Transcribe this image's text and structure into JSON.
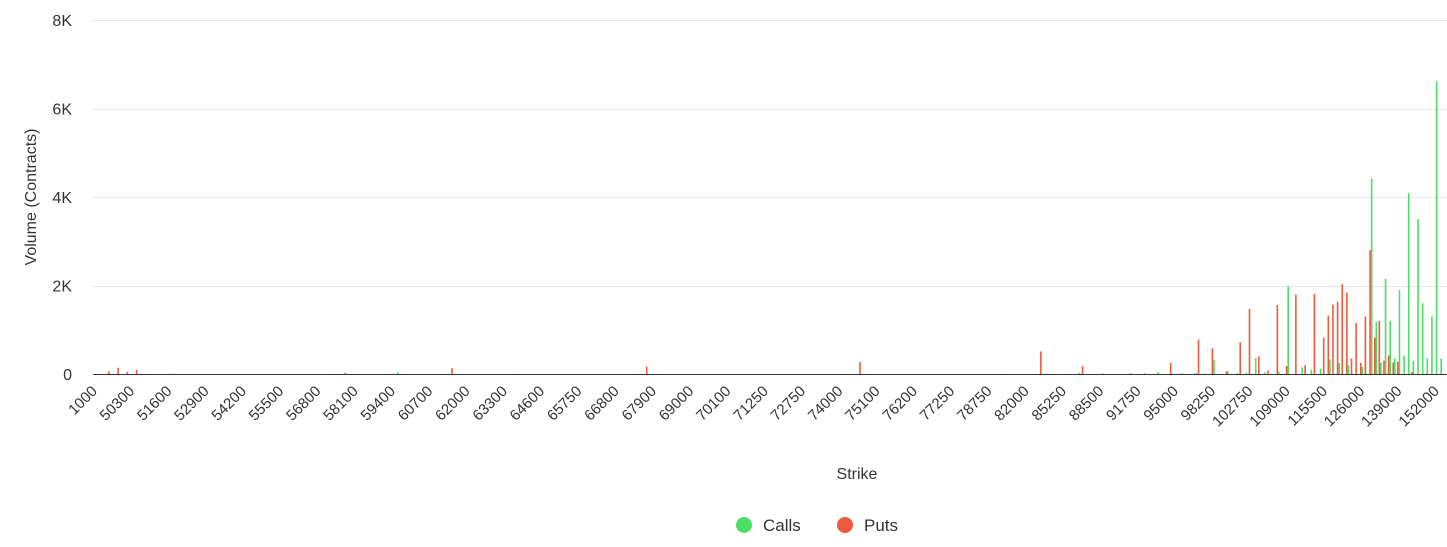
{
  "colors": {
    "calls": "#4cde67",
    "puts": "#f05a3c",
    "grid": "#e6e6e6",
    "axis": "#333333",
    "text": "#333333"
  },
  "chart_data": {
    "type": "bar",
    "xlabel": "Strike",
    "ylabel": "Volume (Contracts)",
    "ylim": [
      0,
      8000
    ],
    "y_ticks": [
      "0",
      "2K",
      "4K",
      "6K",
      "8K"
    ],
    "y_tick_values": [
      0,
      2000,
      4000,
      6000,
      8000
    ],
    "x_tick_labels": [
      "1000",
      "50300",
      "51600",
      "52900",
      "54200",
      "55500",
      "56800",
      "58100",
      "59400",
      "60700",
      "62000",
      "63300",
      "64600",
      "65750",
      "66800",
      "67900",
      "69000",
      "70100",
      "71250",
      "72750",
      "74000",
      "75100",
      "76200",
      "77250",
      "78750",
      "82000",
      "85250",
      "88500",
      "91750",
      "95000",
      "98250",
      "102750",
      "109000",
      "115500",
      "126000",
      "139000",
      "152000"
    ],
    "grid": true,
    "legend_position": "bottom-center",
    "num_strikes": 290,
    "series": [
      {
        "name": "Calls",
        "color": "#4cde67",
        "points": [
          {
            "x": 15,
            "y": 10
          },
          {
            "x": 30,
            "y": 5
          },
          {
            "x": 64,
            "y": 40
          },
          {
            "x": 90,
            "y": 5
          },
          {
            "x": 156,
            "y": 5
          },
          {
            "x": 183,
            "y": 5
          },
          {
            "x": 194,
            "y": 5
          },
          {
            "x": 211,
            "y": 30
          },
          {
            "x": 216,
            "y": 15
          },
          {
            "x": 222,
            "y": 20
          },
          {
            "x": 225,
            "y": 20
          },
          {
            "x": 228,
            "y": 40
          },
          {
            "x": 231,
            "y": 10
          },
          {
            "x": 233,
            "y": 20
          },
          {
            "x": 236,
            "y": 25
          },
          {
            "x": 238,
            "y": 15
          },
          {
            "x": 240,
            "y": 320
          },
          {
            "x": 243,
            "y": 60
          },
          {
            "x": 245,
            "y": 20
          },
          {
            "x": 247,
            "y": 30
          },
          {
            "x": 249,
            "y": 360
          },
          {
            "x": 251,
            "y": 40
          },
          {
            "x": 254,
            "y": 50
          },
          {
            "x": 256,
            "y": 1980
          },
          {
            "x": 259,
            "y": 150
          },
          {
            "x": 261,
            "y": 100
          },
          {
            "x": 263,
            "y": 120
          },
          {
            "x": 265,
            "y": 330
          },
          {
            "x": 267,
            "y": 250
          },
          {
            "x": 269,
            "y": 200
          },
          {
            "x": 272,
            "y": 160
          },
          {
            "x": 274,
            "y": 4420
          },
          {
            "x": 275,
            "y": 1180
          },
          {
            "x": 276,
            "y": 260
          },
          {
            "x": 277,
            "y": 2150
          },
          {
            "x": 278,
            "y": 1200
          },
          {
            "x": 279,
            "y": 350
          },
          {
            "x": 280,
            "y": 1900
          },
          {
            "x": 281,
            "y": 420
          },
          {
            "x": 282,
            "y": 4090
          },
          {
            "x": 283,
            "y": 300
          },
          {
            "x": 284,
            "y": 3500
          },
          {
            "x": 285,
            "y": 1600
          },
          {
            "x": 286,
            "y": 350
          },
          {
            "x": 287,
            "y": 1300
          },
          {
            "x": 288,
            "y": 6620
          },
          {
            "x": 289,
            "y": 350
          }
        ]
      },
      {
        "name": "Puts",
        "color": "#f05a3c",
        "points": [
          {
            "x": 2,
            "y": 60
          },
          {
            "x": 4,
            "y": 140
          },
          {
            "x": 6,
            "y": 50
          },
          {
            "x": 8,
            "y": 90
          },
          {
            "x": 53,
            "y": 30
          },
          {
            "x": 76,
            "y": 130
          },
          {
            "x": 118,
            "y": 170
          },
          {
            "x": 164,
            "y": 270
          },
          {
            "x": 203,
            "y": 510
          },
          {
            "x": 212,
            "y": 180
          },
          {
            "x": 231,
            "y": 250
          },
          {
            "x": 237,
            "y": 780
          },
          {
            "x": 240,
            "y": 580
          },
          {
            "x": 243,
            "y": 60
          },
          {
            "x": 246,
            "y": 720
          },
          {
            "x": 248,
            "y": 1470
          },
          {
            "x": 250,
            "y": 400
          },
          {
            "x": 252,
            "y": 80
          },
          {
            "x": 254,
            "y": 1560
          },
          {
            "x": 256,
            "y": 180
          },
          {
            "x": 258,
            "y": 1800
          },
          {
            "x": 260,
            "y": 200
          },
          {
            "x": 262,
            "y": 1810
          },
          {
            "x": 264,
            "y": 820
          },
          {
            "x": 265,
            "y": 1320
          },
          {
            "x": 266,
            "y": 1570
          },
          {
            "x": 267,
            "y": 1630
          },
          {
            "x": 268,
            "y": 2030
          },
          {
            "x": 269,
            "y": 1840
          },
          {
            "x": 270,
            "y": 350
          },
          {
            "x": 271,
            "y": 1150
          },
          {
            "x": 272,
            "y": 250
          },
          {
            "x": 273,
            "y": 1300
          },
          {
            "x": 274,
            "y": 2800
          },
          {
            "x": 275,
            "y": 820
          },
          {
            "x": 276,
            "y": 1200
          },
          {
            "x": 277,
            "y": 300
          },
          {
            "x": 278,
            "y": 420
          },
          {
            "x": 279,
            "y": 260
          },
          {
            "x": 280,
            "y": 280
          },
          {
            "x": 283,
            "y": 40
          }
        ]
      }
    ]
  }
}
